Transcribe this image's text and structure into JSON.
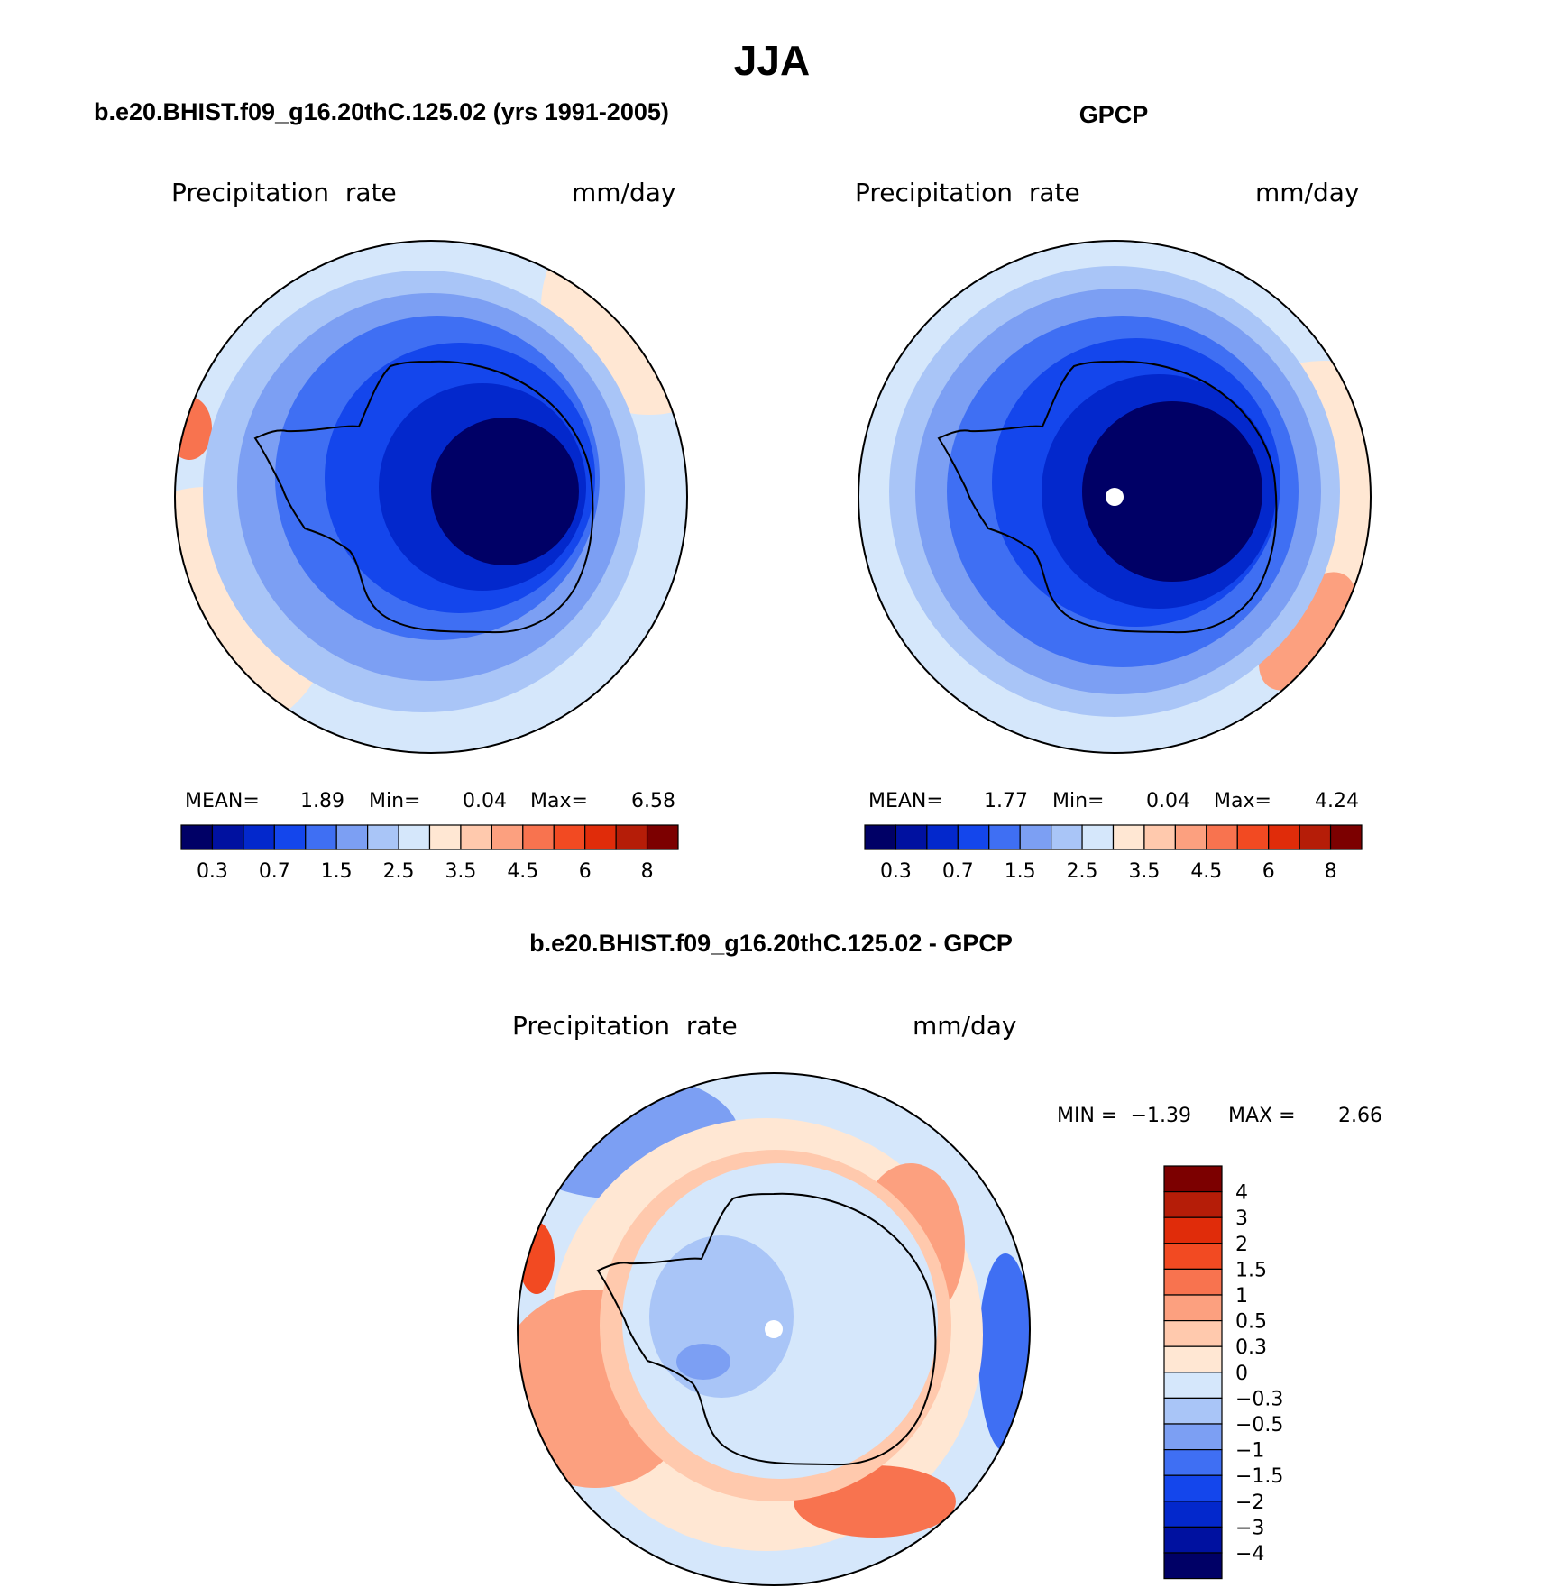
{
  "title": "JJA",
  "colors": {
    "abs_scale": [
      "#000066",
      "#0011a0",
      "#0328cc",
      "#1446ec",
      "#3f6ff3",
      "#7c9ff3",
      "#a9c5f7",
      "#d5e7fb",
      "#ffe7d3",
      "#ffc9ad",
      "#fca07f",
      "#f8734f",
      "#f24a22",
      "#e02c0a",
      "#b51d08",
      "#7c0000"
    ],
    "diff_scale": [
      "#000066",
      "#0011a0",
      "#0328cc",
      "#1446ec",
      "#3f6ff3",
      "#7c9ff3",
      "#a9c5f7",
      "#d5e7fb",
      "#ffe7d3",
      "#ffc9ad",
      "#fca07f",
      "#f8734f",
      "#f24a22",
      "#e02c0a",
      "#b51d08",
      "#7c0000"
    ]
  },
  "panels": [
    {
      "id": "model",
      "heading": "b.e20.BHIST.f09_g16.20thC.125.02 (yrs 1991-2005)",
      "variable": "Precipitation  rate",
      "units": "mm/day",
      "stats": {
        "mean_label": "MEAN=",
        "mean": "1.89",
        "min_label": "Min=",
        "min": "0.04",
        "max_label": "Max=",
        "max": "6.58"
      },
      "colorbar_labels": [
        "0.3",
        "0.7",
        "1.5",
        "2.5",
        "3.5",
        "4.5",
        "6",
        "8"
      ],
      "has_pole_dot": false
    },
    {
      "id": "obs",
      "heading": "GPCP",
      "variable": "Precipitation  rate",
      "units": "mm/day",
      "stats": {
        "mean_label": "MEAN=",
        "mean": "1.77",
        "min_label": "Min=",
        "min": "0.04",
        "max_label": "Max=",
        "max": "4.24"
      },
      "colorbar_labels": [
        "0.3",
        "0.7",
        "1.5",
        "2.5",
        "3.5",
        "4.5",
        "6",
        "8"
      ],
      "has_pole_dot": true
    }
  ],
  "difference": {
    "heading": "b.e20.BHIST.f09_g16.20thC.125.02 - GPCP",
    "variable": "Precipitation  rate",
    "units": "mm/day",
    "stats": {
      "min_label": "MIN =",
      "min": "−1.39",
      "max_label": "MAX =",
      "max": "2.66"
    },
    "colorbar_labels": [
      "4",
      "3",
      "2",
      "1.5",
      "1",
      "0.5",
      "0.3",
      "0",
      "−0.3",
      "−0.5",
      "−1",
      "−1.5",
      "−2",
      "−3",
      "−4"
    ],
    "has_pole_dot": true
  }
}
